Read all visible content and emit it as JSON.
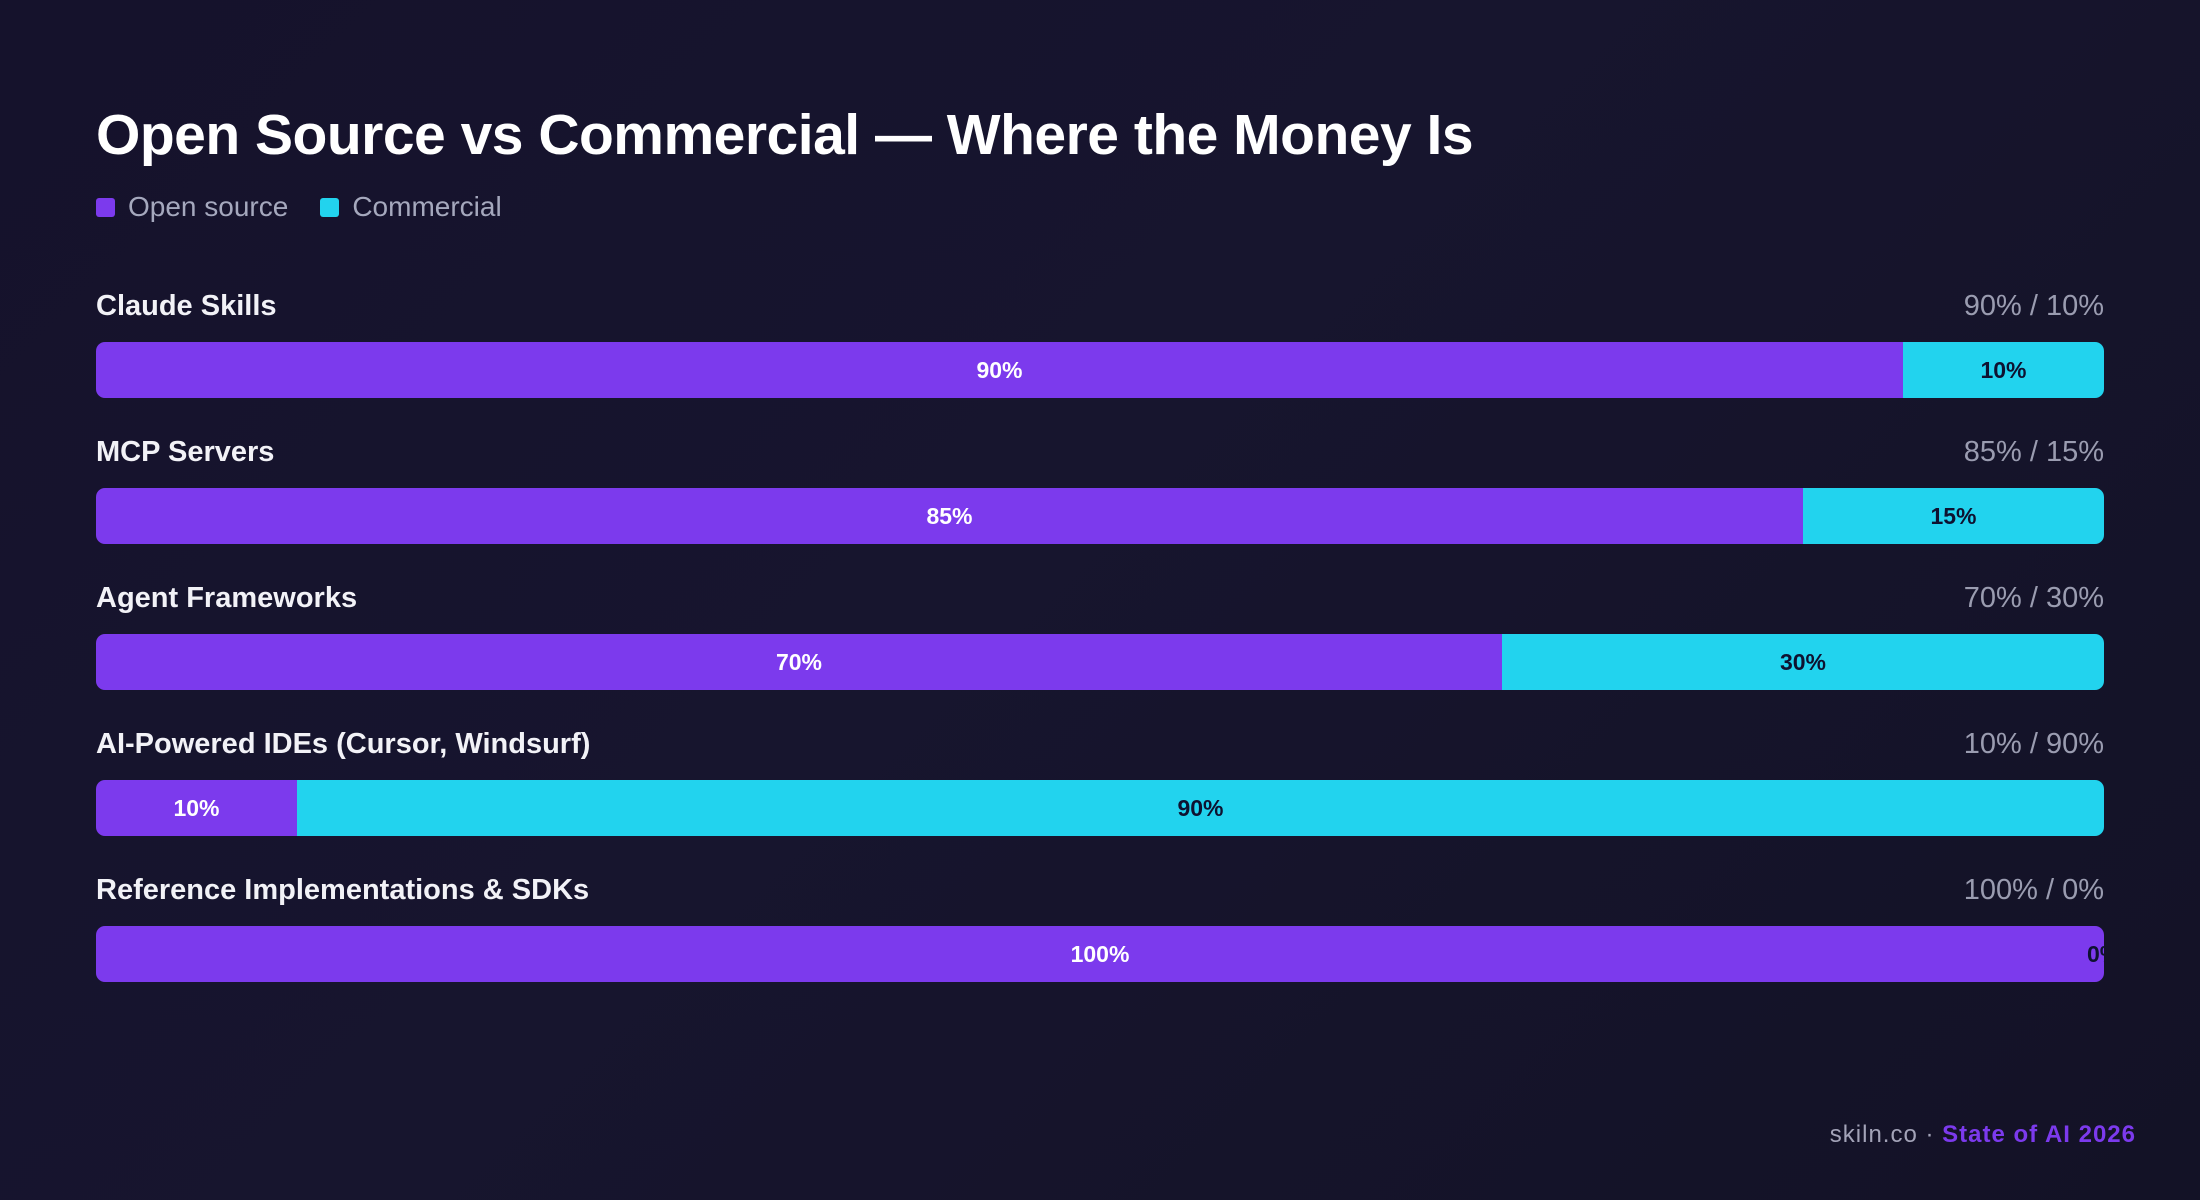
{
  "chart_data": {
    "type": "bar",
    "orientation": "horizontal",
    "stacked": true,
    "title": "Open Source vs Commercial — Where the Money Is",
    "categories": [
      "Claude Skills",
      "MCP Servers",
      "Agent Frameworks",
      "AI-Powered IDEs (Cursor, Windsurf)",
      "Reference Implementations & SDKs"
    ],
    "series": [
      {
        "name": "Open source",
        "color": "#7c3aed",
        "values": [
          90,
          85,
          70,
          10,
          100
        ]
      },
      {
        "name": "Commercial",
        "color": "#22d3ee",
        "values": [
          10,
          15,
          30,
          90,
          0
        ]
      }
    ],
    "ratio_labels": [
      "90% / 10%",
      "85% / 15%",
      "70% / 30%",
      "10% / 90%",
      "100% / 0%"
    ],
    "xlim": [
      0,
      100
    ],
    "unit": "%",
    "legend_position": "top-left",
    "grid": false
  },
  "footer": {
    "domain": "skiln.co",
    "separator": " · ",
    "report": "State of AI 2026"
  }
}
